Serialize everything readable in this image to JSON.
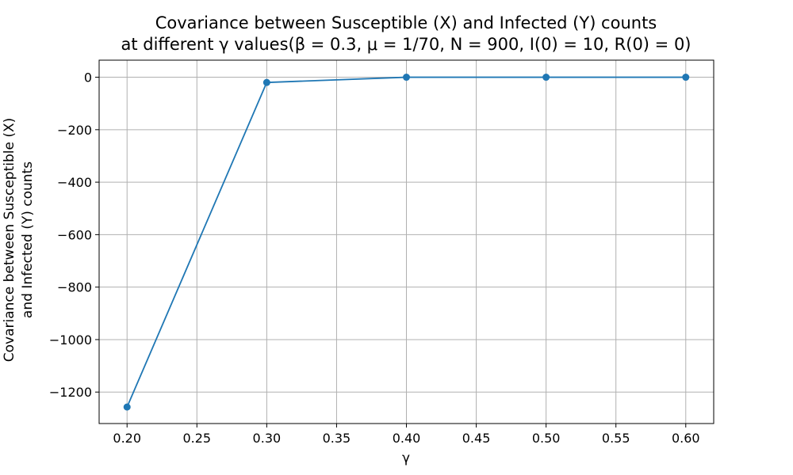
{
  "chart_data": {
    "type": "line",
    "title": [
      "Covariance between Susceptible (X) and Infected (Y) counts",
      "at different γ values(β = 0.3, μ = 1/70, N = 900, I(0) = 10, R(0) = 0)"
    ],
    "xlabel": "γ",
    "ylabel": [
      "Covariance between Susceptible (X)",
      "and Infected (Y) counts"
    ],
    "x": [
      0.2,
      0.3,
      0.4,
      0.5,
      0.6
    ],
    "series": [
      {
        "values": [
          -1257,
          -20,
          0,
          0,
          0
        ],
        "color": "#1f77b4",
        "marker": "circle"
      }
    ],
    "xlim": [
      0.18,
      0.62
    ],
    "ylim": [
      -1320,
      65
    ],
    "xticks": [
      0.2,
      0.25,
      0.3,
      0.35,
      0.4,
      0.45,
      0.5,
      0.55,
      0.6
    ],
    "xtick_labels": [
      "0.20",
      "0.25",
      "0.30",
      "0.35",
      "0.40",
      "0.45",
      "0.50",
      "0.55",
      "0.60"
    ],
    "yticks": [
      0,
      -200,
      -400,
      -600,
      -800,
      -1000,
      -1200
    ],
    "ytick_labels": [
      "0",
      "−200",
      "−400",
      "−600",
      "−800",
      "−1000",
      "−1200"
    ],
    "grid": true,
    "grid_color": "#b0b0b0"
  }
}
